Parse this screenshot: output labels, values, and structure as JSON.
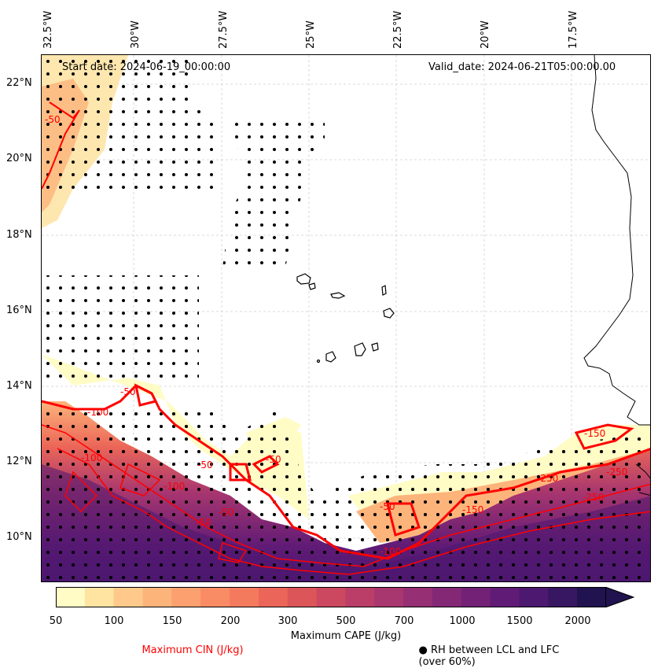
{
  "map": {
    "start_date": "Start date: 2024-06-19_00:00:00",
    "valid_date": "Valid_date: 2024-06-21T05:00:00.00",
    "longitude_labels": [
      "32.5°W",
      "30°W",
      "27.5°W",
      "25°W",
      "22.5°W",
      "20°W",
      "17.5°W"
    ],
    "latitude_labels": [
      "22°N",
      "20°N",
      "18°N",
      "16°N",
      "14°N",
      "12°N",
      "10°N"
    ],
    "cin_contour_labels": [
      "-50",
      "-100",
      "-100",
      "-50",
      "-100",
      "-50",
      "-50",
      "-50",
      "-50",
      "-100",
      "-250",
      "-250",
      "-250",
      "-150",
      "-150",
      "-50"
    ]
  },
  "colorbar": {
    "label": "Maximum CAPE (J/kg)",
    "ticks": [
      "50",
      "100",
      "150",
      "200",
      "300",
      "500",
      "700",
      "1000",
      "1500",
      "2000"
    ],
    "colors": [
      "#fffcc6",
      "#fee3a1",
      "#fec98b",
      "#fdb47b",
      "#fca06f",
      "#f98b65",
      "#f47a5e",
      "#eb6658",
      "#dc5558",
      "#cc4860",
      "#ba3e68",
      "#a8366f",
      "#962f74",
      "#842876",
      "#722176",
      "#601b76",
      "#4c1870",
      "#381762",
      "#21134f"
    ]
  },
  "legend": {
    "cin_label": "Maximum CIN (J/kg)",
    "rh_label": "● RH between LCL and LFC (over 60%)"
  }
}
